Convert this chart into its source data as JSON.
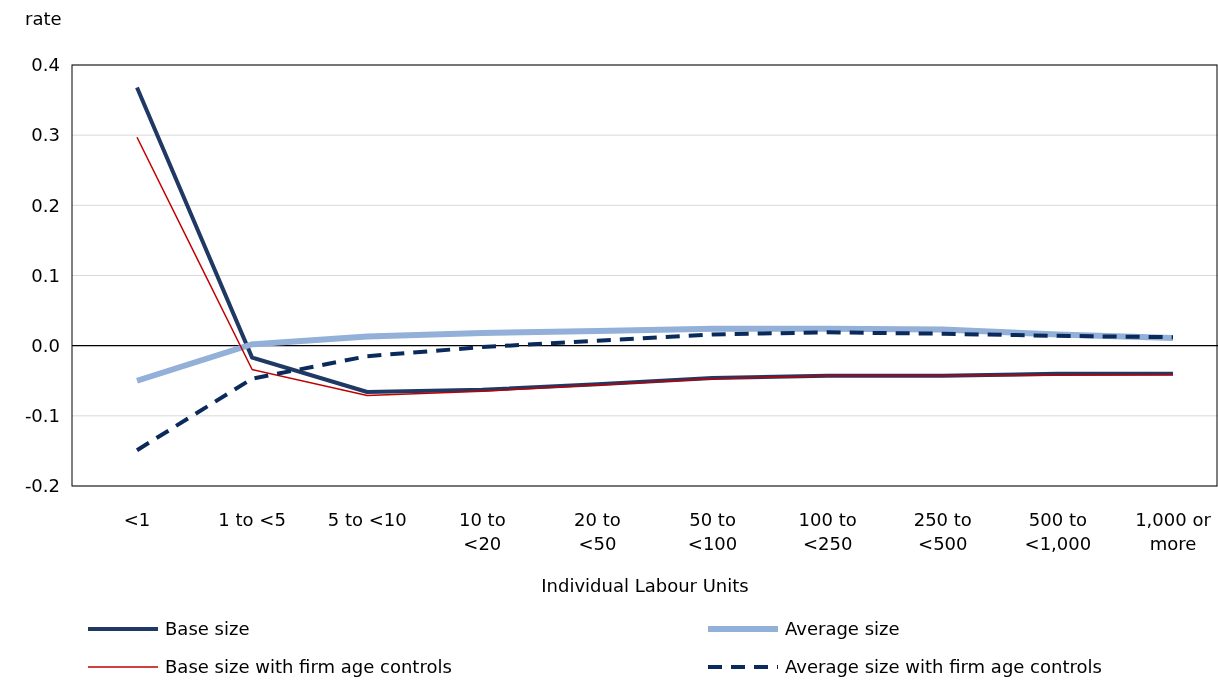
{
  "chart_data": {
    "type": "line",
    "ylabel": "rate",
    "xlabel": "Individual Labour Units",
    "categories": [
      "<1",
      "1 to <5",
      "5 to <10",
      "10 to <20",
      "20 to <50",
      "50 to <100",
      "100 to <250",
      "250 to <500",
      "500 to <1,000",
      "1,000 or more"
    ],
    "series": [
      {
        "name": "Base size",
        "color": "#1f3864",
        "line_style": "solid",
        "values": [
          0.368,
          -0.017,
          -0.066,
          -0.063,
          -0.055,
          -0.046,
          -0.043,
          -0.043,
          -0.04,
          -0.04
        ]
      },
      {
        "name": "Average size",
        "color": "#92b0d8",
        "line_style": "solid",
        "values": [
          -0.05,
          0.002,
          0.013,
          0.018,
          0.021,
          0.024,
          0.024,
          0.023,
          0.016,
          0.011
        ]
      },
      {
        "name": "Base size with firm age controls",
        "color": "#c00000",
        "line_style": "solid",
        "values": [
          0.297,
          -0.034,
          -0.071,
          -0.065,
          -0.056,
          -0.047,
          -0.043,
          -0.043,
          -0.042,
          -0.041
        ]
      },
      {
        "name": "Average size with firm age controls",
        "color": "#0b2a5c",
        "line_style": "dashed",
        "values": [
          -0.149,
          -0.047,
          -0.015,
          -0.002,
          0.007,
          0.016,
          0.019,
          0.017,
          0.014,
          0.012
        ]
      }
    ],
    "ylim": [
      -0.2,
      0.4
    ],
    "yticks": [
      {
        "value": -0.2,
        "label": "-0.2"
      },
      {
        "value": -0.1,
        "label": "-0.1"
      },
      {
        "value": 0,
        "label": "0.0"
      },
      {
        "value": 0.1,
        "label": "0.1"
      },
      {
        "value": 0.2,
        "label": "0.2"
      },
      {
        "value": 0.3,
        "label": "0.3"
      },
      {
        "value": 0.4,
        "label": "0.4"
      }
    ],
    "grid": "y",
    "legend": "bottom",
    "marker": "none"
  }
}
